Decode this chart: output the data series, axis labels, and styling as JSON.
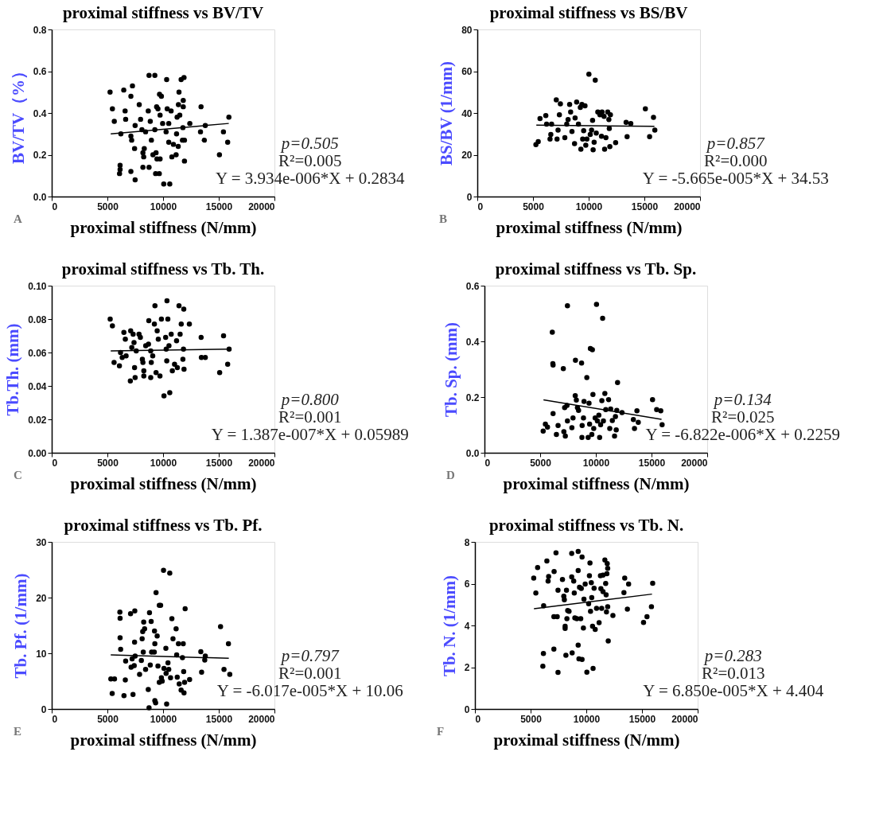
{
  "chart_data": [
    {
      "type": "scatter",
      "title": "proximal stiffness vs BV/TV",
      "xlabel": "proximal stiffness (N/mm)",
      "ylabel": "BV/TV（%）",
      "xlim": [
        0,
        20000
      ],
      "xticks": [
        0,
        5000,
        10000,
        15000,
        20000
      ],
      "ylim": [
        0,
        0.8
      ],
      "yticks": [
        {
          "value": 0,
          "label": "0.0"
        },
        {
          "value": 0.2,
          "label": "0.2"
        },
        {
          "value": 0.4,
          "label": "0.4"
        },
        {
          "value": 0.6,
          "label": "0.6"
        },
        {
          "value": 0.8,
          "label": "0.8"
        }
      ],
      "series": [
        {
          "marker": "circle",
          "color": "#000000",
          "x": [
            5240,
            5450,
            5620,
            6140,
            6140,
            6090,
            6210,
            6470,
            6590,
            6640,
            7250,
            7110,
            7110,
            7180,
            7110,
            7490,
            7440,
            7490,
            7860,
            7980,
            8100,
            8190,
            8260,
            8310,
            8190,
            8430,
            8670,
            8740,
            9260,
            8850,
            8740,
            8950,
            9090,
            9260,
            9370,
            9450,
            9330,
            9660,
            9420,
            9540,
            9680,
            9850,
            9730,
            9730,
            9960,
            10060,
            10320,
            10270,
            10370,
            10510,
            10600,
            10720,
            10510,
            10790,
            10930,
            11170,
            11210,
            11260,
            11380,
            11430,
            11360,
            11500,
            11620,
            11880,
            11810,
            11810,
            11780,
            11740,
            11920,
            11920,
            12400,
            13410,
            13360,
            13700,
            13790,
            15060,
            15420,
            15800,
            15910
          ],
          "values": [
            0.5,
            0.42,
            0.36,
            0.15,
            0.13,
            0.11,
            0.3,
            0.51,
            0.41,
            0.37,
            0.53,
            0.48,
            0.29,
            0.27,
            0.12,
            0.08,
            0.23,
            0.34,
            0.44,
            0.37,
            0.32,
            0.21,
            0.19,
            0.23,
            0.14,
            0.31,
            0.41,
            0.58,
            0.58,
            0.36,
            0.14,
            0.27,
            0.2,
            0.32,
            0.21,
            0.18,
            0.11,
            0.11,
            0.43,
            0.42,
            0.49,
            0.48,
            0.39,
            0.18,
            0.35,
            0.06,
            0.56,
            0.31,
            0.42,
            0.35,
            0.06,
            0.41,
            0.26,
            0.19,
            0.25,
            0.2,
            0.3,
            0.38,
            0.44,
            0.5,
            0.24,
            0.39,
            0.56,
            0.57,
            0.46,
            0.43,
            0.33,
            0.27,
            0.27,
            0.17,
            0.35,
            0.43,
            0.31,
            0.27,
            0.34,
            0.2,
            0.31,
            0.26,
            0.38
          ]
        },
        {
          "type": "line",
          "color": "#000000",
          "x": [
            5300,
            15900
          ],
          "values": [
            0.3,
            0.35
          ]
        }
      ],
      "annotations": [
        "p=0.505",
        "R²=0.005",
        "Y = 3.934e-006*X + 0.2834",
        "A"
      ]
    },
    {
      "type": "scatter",
      "title": "proximal stiffness vs BS/BV",
      "xlabel": "proximal stiffness (N/mm)",
      "ylabel": "BS/BV (1/mm)",
      "xlim": [
        0,
        20000
      ],
      "xticks": [
        0,
        5000,
        10000,
        15000,
        20000
      ],
      "ylim": [
        0,
        80
      ],
      "yticks": [
        0,
        20,
        40,
        60,
        80
      ],
      "series": [
        {
          "marker": "circle",
          "color": "#000000",
          "x": [
            5260,
            5470,
            5630,
            6150,
            6220,
            6530,
            6600,
            6670,
            7090,
            7160,
            7250,
            7370,
            7460,
            7860,
            8030,
            8150,
            8290,
            8380,
            8500,
            8730,
            8780,
            8920,
            9080,
            9250,
            9300,
            9390,
            9460,
            9550,
            9670,
            9740,
            9840,
            10020,
            10140,
            10260,
            10350,
            10400,
            10490,
            10590,
            10680,
            10820,
            11010,
            11150,
            11200,
            11380,
            11430,
            11550,
            11710,
            11810,
            11850,
            11900,
            11950,
            12420,
            13450,
            13360,
            13780,
            15090,
            15470,
            15820,
            15940
          ],
          "values": [
            24.9,
            26.3,
            37.3,
            38.8,
            34.7,
            27.5,
            29.7,
            34.7,
            46.3,
            27.5,
            31.8,
            39.1,
            44.4,
            28.2,
            34.7,
            36.9,
            44.1,
            40.5,
            31.1,
            25.3,
            37.6,
            45.2,
            34.7,
            42.7,
            22.7,
            44.1,
            27.5,
            31.5,
            43.4,
            24.6,
            27.5,
            58.6,
            29.7,
            31.8,
            36.5,
            22.4,
            26.0,
            55.7,
            30.4,
            40.5,
            39.1,
            28.9,
            40.5,
            38.4,
            22.7,
            28.2,
            40.5,
            36.9,
            32.6,
            23.9,
            39.1,
            25.8,
            28.7,
            35.5,
            35.0,
            42.0,
            28.7,
            37.9,
            31.8
          ]
        },
        {
          "type": "line",
          "color": "#000000",
          "x": [
            5300,
            15900
          ],
          "values": [
            34.2,
            33.6
          ]
        }
      ],
      "annotations": [
        "p=0.857",
        "R²=0.000",
        "Y = -5.665e-005*X + 34.53",
        "B"
      ]
    },
    {
      "type": "scatter",
      "title": "proximal stiffness vs Tb. Th.",
      "xlabel": "proximal stiffness (N/mm)",
      "ylabel": "Tb.Th. (mm)",
      "xlim": [
        0,
        20000
      ],
      "xticks": [
        0,
        5000,
        10000,
        15000,
        20000
      ],
      "ylim": [
        0,
        0.1
      ],
      "yticks": [
        {
          "value": 0,
          "label": "0.00"
        },
        {
          "value": 0.02,
          "label": "0.02"
        },
        {
          "value": 0.04,
          "label": "0.04"
        },
        {
          "value": 0.06,
          "label": "0.06"
        },
        {
          "value": 0.08,
          "label": "0.08"
        },
        {
          "value": 0.1,
          "label": "0.10"
        }
      ],
      "series": [
        {
          "marker": "circle",
          "color": "#000000",
          "x": [
            5250,
            5450,
            5600,
            6080,
            6180,
            6330,
            6480,
            6610,
            6680,
            7060,
            7090,
            7190,
            7310,
            7390,
            7440,
            7490,
            7590,
            7840,
            7960,
            8140,
            8190,
            8270,
            8270,
            8440,
            8690,
            8720,
            8890,
            8890,
            8940,
            9070,
            9270,
            9220,
            9370,
            9470,
            9570,
            9720,
            9850,
            10080,
            10230,
            10280,
            10330,
            10350,
            10430,
            10530,
            10600,
            10730,
            10830,
            11030,
            11210,
            11280,
            11430,
            11530,
            11630,
            11780,
            11830,
            11860,
            11880,
            12360,
            13420,
            13440,
            13790,
            15080,
            15430,
            15800,
            15930
          ],
          "values": [
            0.08,
            0.076,
            0.054,
            0.052,
            0.06,
            0.057,
            0.072,
            0.068,
            0.058,
            0.043,
            0.073,
            0.063,
            0.071,
            0.066,
            0.051,
            0.045,
            0.061,
            0.071,
            0.069,
            0.056,
            0.054,
            0.049,
            0.046,
            0.064,
            0.065,
            0.079,
            0.061,
            0.045,
            0.054,
            0.058,
            0.088,
            0.077,
            0.048,
            0.073,
            0.068,
            0.046,
            0.08,
            0.034,
            0.069,
            0.062,
            0.055,
            0.091,
            0.08,
            0.064,
            0.036,
            0.071,
            0.049,
            0.053,
            0.067,
            0.051,
            0.088,
            0.071,
            0.077,
            0.056,
            0.062,
            0.086,
            0.05,
            0.077,
            0.069,
            0.057,
            0.057,
            0.048,
            0.07,
            0.053,
            0.062
          ]
        },
        {
          "type": "line",
          "color": "#000000",
          "x": [
            5300,
            15900
          ],
          "values": [
            0.061,
            0.062
          ]
        }
      ],
      "annotations": [
        "p=0.800",
        "R²=0.001",
        "Y = 1.387e-007*X + 0.05989",
        "C"
      ]
    },
    {
      "type": "scatter",
      "title": "proximal stiffness vs Tb. Sp.",
      "xlabel": "proximal stiffness (N/mm)",
      "ylabel": "Tb. Sp. (mm)",
      "xlim": [
        0,
        20000
      ],
      "xticks": [
        0,
        5000,
        10000,
        15000,
        20000
      ],
      "ylim": [
        0,
        0.6
      ],
      "yticks": [
        {
          "value": 0,
          "label": "0.0"
        },
        {
          "value": 0.2,
          "label": "0.2"
        },
        {
          "value": 0.4,
          "label": "0.4"
        },
        {
          "value": 0.6,
          "label": "0.6"
        }
      ],
      "series": [
        {
          "marker": "circle",
          "color": "#000000",
          "x": [
            5270,
            5470,
            5660,
            6160,
            6090,
            6140,
            6160,
            6460,
            6610,
            7080,
            7130,
            7260,
            7200,
            7410,
            7450,
            7450,
            7850,
            7950,
            8150,
            8170,
            8250,
            8350,
            8450,
            8720,
            8750,
            8770,
            8890,
            8940,
            9190,
            9310,
            9390,
            9440,
            9510,
            9640,
            9690,
            9740,
            9810,
            9940,
            10060,
            10140,
            10270,
            10340,
            10430,
            10540,
            10610,
            10680,
            10810,
            10890,
            11140,
            11250,
            11330,
            11480,
            11680,
            11760,
            11830,
            11880,
            11950,
            12350,
            13370,
            13470,
            13690,
            13810,
            15090,
            15460,
            15830,
            15950
          ],
          "values": [
            0.078,
            0.103,
            0.092,
            0.141,
            0.433,
            0.32,
            0.315,
            0.066,
            0.098,
            0.302,
            0.076,
            0.06,
            0.162,
            0.17,
            0.114,
            0.528,
            0.09,
            0.125,
            0.205,
            0.332,
            0.189,
            0.162,
            0.152,
            0.322,
            0.055,
            0.098,
            0.125,
            0.184,
            0.27,
            0.055,
            0.178,
            0.103,
            0.374,
            0.066,
            0.37,
            0.209,
            0.087,
            0.125,
            0.533,
            0.114,
            0.135,
            0.055,
            0.101,
            0.187,
            0.483,
            0.114,
            0.213,
            0.155,
            0.191,
            0.087,
            0.157,
            0.116,
            0.06,
            0.13,
            0.082,
            0.152,
            0.252,
            0.144,
            0.119,
            0.087,
            0.151,
            0.109,
            0.191,
            0.155,
            0.151,
            0.101
          ]
        },
        {
          "type": "line",
          "color": "#000000",
          "x": [
            5300,
            15900
          ],
          "values": [
            0.19,
            0.12
          ]
        }
      ],
      "annotations": [
        "p=0.134",
        "R²=0.025",
        "Y = -6.822e-006*X + 0.2259",
        "D"
      ]
    },
    {
      "type": "scatter",
      "title": "proximal stiffness vs Tb. Pf.",
      "xlabel": "proximal stiffness (N/mm)",
      "ylabel": "Tb. Pf. (1/mm)",
      "xlim": [
        0,
        20000
      ],
      "xticks": [
        0,
        5000,
        10000,
        15000,
        20000
      ],
      "ylim": [
        0,
        30
      ],
      "yticks": [
        0,
        10,
        20,
        30
      ],
      "series": [
        {
          "marker": "circle",
          "color": "#000000",
          "x": [
            5310,
            5640,
            5430,
            6120,
            6140,
            6140,
            6190,
            6490,
            6640,
            6610,
            7080,
            7130,
            7220,
            7300,
            7410,
            7460,
            7440,
            7490,
            7890,
            8050,
            8120,
            8170,
            8220,
            8260,
            8340,
            8430,
            8670,
            8740,
            8780,
            8850,
            8930,
            8970,
            9210,
            9230,
            9260,
            9260,
            9330,
            9370,
            9470,
            9540,
            9660,
            9660,
            9780,
            9850,
            9920,
            10040,
            10080,
            10250,
            10270,
            10320,
            10440,
            10510,
            10600,
            10670,
            10790,
            10890,
            11170,
            11220,
            11270,
            11380,
            11450,
            11620,
            11740,
            11810,
            11850,
            11880,
            11930,
            11980,
            12380,
            13390,
            13460,
            13790,
            13740,
            15160,
            15470,
            15870,
            15990
          ],
          "values": [
            5.4,
            5.4,
            2.8,
            17.4,
            16.3,
            12.8,
            10.7,
            2.4,
            8.6,
            5.2,
            17.1,
            7.5,
            9.0,
            2.6,
            7.8,
            17.6,
            12.0,
            9.5,
            6.2,
            8.7,
            12.6,
            13.9,
            10.2,
            15.6,
            14.4,
            7.1,
            3.5,
            0.2,
            17.3,
            7.9,
            15.7,
            10.2,
            10.2,
            14.0,
            11.7,
            1.5,
            1.1,
            20.9,
            13.1,
            7.7,
            4.8,
            18.6,
            18.6,
            5.6,
            5.0,
            24.9,
            7.3,
            10.9,
            6.4,
            0.9,
            8.3,
            7.1,
            24.4,
            5.6,
            16.2,
            12.6,
            14.4,
            9.7,
            5.7,
            11.7,
            4.5,
            3.4,
            9.2,
            11.7,
            6.7,
            2.9,
            4.8,
            18.0,
            5.3,
            10.3,
            6.6,
            9.5,
            8.8,
            14.8,
            7.1,
            11.7,
            6.2
          ]
        },
        {
          "type": "line",
          "color": "#000000",
          "x": [
            5300,
            15900
          ],
          "values": [
            9.7,
            9.1
          ]
        }
      ],
      "annotations": [
        "p=0.797",
        "R²=0.001",
        "Y = -6.017e-005*X + 10.06",
        "E"
      ]
    },
    {
      "type": "scatter",
      "title": "proximal stiffness vs Tb. N.",
      "xlabel": "proximal stiffness (N/mm)",
      "ylabel": "Tb. N. (1/mm)",
      "xlim": [
        0,
        20000
      ],
      "xticks": [
        0,
        5000,
        10000,
        15000,
        20000
      ],
      "ylim": [
        0,
        8
      ],
      "yticks": [
        0,
        2,
        4,
        6,
        8
      ],
      "series": [
        {
          "marker": "circle",
          "color": "#000000",
          "x": [
            5280,
            5470,
            5630,
            6100,
            6150,
            6170,
            6460,
            6570,
            6620,
            7110,
            7090,
            7090,
            7280,
            7390,
            7460,
            7460,
            7860,
            7980,
            8030,
            8100,
            8100,
            8170,
            8220,
            8260,
            8330,
            8450,
            8690,
            8690,
            8730,
            8870,
            8920,
            8970,
            9150,
            9270,
            9270,
            9270,
            9340,
            9390,
            9500,
            9550,
            9620,
            9620,
            9740,
            9790,
            9900,
            10050,
            10210,
            10280,
            10330,
            10380,
            10450,
            10490,
            10560,
            10610,
            10700,
            10800,
            10920,
            11150,
            11270,
            11310,
            11380,
            11500,
            11500,
            11670,
            11740,
            11780,
            11810,
            11850,
            11880,
            11920,
            11920,
            11970,
            12390,
            13380,
            13450,
            13690,
            13800,
            15140,
            15450,
            15850,
            15960
          ],
          "values": [
            6.27,
            5.55,
            6.77,
            2.05,
            2.66,
            4.94,
            7.09,
            6.12,
            6.34,
            6.58,
            4.42,
            2.87,
            7.48,
            4.42,
            5.69,
            1.75,
            6.2,
            5.4,
            5.23,
            3.96,
            3.86,
            2.57,
            5.69,
            4.32,
            4.71,
            4.68,
            7.45,
            6.32,
            2.69,
            6.12,
            5.55,
            4.36,
            4.32,
            7.54,
            6.63,
            3.06,
            2.4,
            5.83,
            4.32,
            5.77,
            2.37,
            7.28,
            3.88,
            5.26,
            5.98,
            1.76,
            5.04,
            6.38,
            6.99,
            4.68,
            6.05,
            5.33,
            3.96,
            1.94,
            5.78,
            3.81,
            4.82,
            4.13,
            6.38,
            5.76,
            4.82,
            6.41,
            5.62,
            7.13,
            6.01,
            5.47,
            4.65,
            6.48,
            6.96,
            6.73,
            4.9,
            3.26,
            4.48,
            5.57,
            6.27,
            4.78,
            5.98,
            4.14,
            4.42,
            4.9,
            6.02
          ]
        },
        {
          "type": "line",
          "color": "#000000",
          "x": [
            5300,
            15900
          ],
          "values": [
            4.8,
            5.5
          ]
        }
      ],
      "annotations": [
        "p=0.283",
        "R²=0.013",
        "Y = 6.850e-005*X + 4.404",
        "F"
      ]
    }
  ]
}
